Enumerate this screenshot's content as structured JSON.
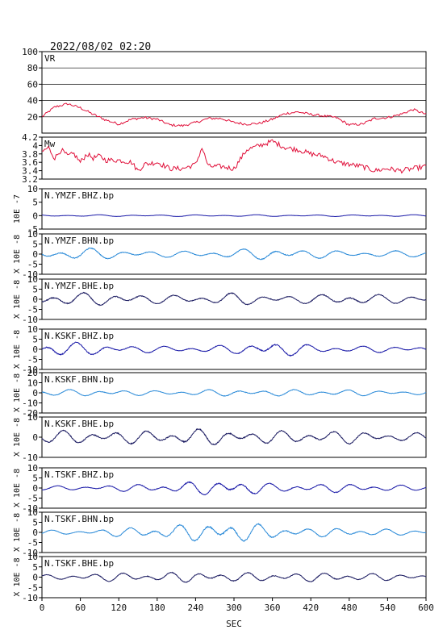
{
  "title": "2022/08/02 02:20",
  "chart_data": {
    "type": "line",
    "xlabel": "SEC",
    "xlim": [
      0,
      600
    ],
    "xticks": [
      0,
      60,
      120,
      180,
      240,
      300,
      360,
      420,
      480,
      540,
      600
    ],
    "grid": false,
    "panels": [
      {
        "label": "VR",
        "color": "#e0103a",
        "ylim": [
          0,
          100
        ],
        "yticks": [
          20,
          40,
          60,
          80,
          100
        ],
        "hgrid": [
          20,
          40,
          60,
          80
        ],
        "x": [
          0,
          20,
          40,
          60,
          80,
          100,
          120,
          140,
          160,
          180,
          200,
          220,
          240,
          260,
          280,
          300,
          320,
          340,
          360,
          380,
          400,
          420,
          440,
          460,
          480,
          500,
          520,
          540,
          560,
          580,
          600
        ],
        "values": [
          20,
          32,
          36,
          31,
          23,
          16,
          11,
          17,
          19,
          17,
          10,
          9,
          13,
          18,
          18,
          13,
          11,
          12,
          17,
          24,
          26,
          23,
          21,
          19,
          10,
          11,
          18,
          19,
          23,
          29,
          23
        ]
      },
      {
        "label": "Mw",
        "color": "#e0103a",
        "ylim": [
          3.2,
          4.2
        ],
        "yticks": [
          3.2,
          3.4,
          3.6,
          3.8,
          4.0,
          4.2
        ],
        "x": [
          0,
          10,
          20,
          30,
          40,
          50,
          60,
          70,
          80,
          90,
          100,
          120,
          140,
          150,
          160,
          180,
          200,
          220,
          240,
          250,
          260,
          280,
          300,
          320,
          340,
          360,
          380,
          400,
          420,
          440,
          460,
          480,
          500,
          520,
          540,
          560,
          580,
          600
        ],
        "values": [
          3.85,
          3.95,
          3.7,
          3.9,
          3.75,
          3.8,
          3.6,
          3.8,
          3.7,
          3.75,
          3.65,
          3.65,
          3.6,
          3.4,
          3.55,
          3.6,
          3.45,
          3.45,
          3.55,
          3.95,
          3.5,
          3.5,
          3.45,
          3.9,
          4.0,
          4.1,
          3.95,
          3.9,
          3.8,
          3.75,
          3.6,
          3.55,
          3.5,
          3.4,
          3.45,
          3.4,
          3.45,
          3.5
        ]
      },
      {
        "label": "N.YMZF.BHZ.bp",
        "unit": "10E -7",
        "color": "#1a1aa8",
        "ylim": [
          -5,
          10
        ],
        "yticks": [
          -5,
          0,
          5,
          10
        ],
        "amplitude": [
          0.3,
          0.3,
          0.3,
          0.3,
          0.3,
          0.3,
          0.3,
          0.3,
          0.3,
          0.3,
          0.3
        ]
      },
      {
        "label": "N.YMZF.BHN.bp",
        "unit": "X 10E -8",
        "color": "#2a8ad8",
        "ylim": [
          -10,
          10
        ],
        "yticks": [
          -10,
          -5,
          0,
          5,
          10
        ],
        "amplitude": [
          2,
          3,
          2,
          1.5,
          1.5,
          2,
          3,
          2,
          1.5,
          1.5,
          1.5
        ]
      },
      {
        "label": "N.YMZF.BHE.bp",
        "unit": "X 10E -8",
        "color": "#1a1a60",
        "ylim": [
          -10,
          10
        ],
        "yticks": [
          -10,
          -5,
          0,
          5,
          10
        ],
        "amplitude": [
          3,
          3,
          3,
          2,
          2,
          3,
          2,
          2,
          3,
          2,
          2
        ]
      },
      {
        "label": "N.KSKF.BHZ.bp",
        "unit": "X 10E -8",
        "color": "#1a1aa8",
        "ylim": [
          -10,
          10
        ],
        "yticks": [
          -10,
          -5,
          0,
          5,
          10
        ],
        "amplitude": [
          4,
          3,
          2,
          1.5,
          1.5,
          2,
          4,
          2,
          1.5,
          1.5,
          1.5
        ]
      },
      {
        "label": "N.KSKF.BHN.bp",
        "unit": "X 10E -8",
        "color": "#2a8ad8",
        "ylim": [
          -20,
          20
        ],
        "yticks": [
          -20,
          -10,
          0,
          10,
          20
        ],
        "amplitude": [
          3,
          3,
          3,
          2,
          3,
          3,
          3,
          3,
          3,
          2,
          2
        ]
      },
      {
        "label": "N.KSKF.BHE.bp",
        "unit": "X 10E -8",
        "color": "#1a1a60",
        "ylim": [
          -10,
          10
        ],
        "yticks": [
          -10,
          0,
          10
        ],
        "amplitude": [
          3,
          3,
          3,
          3,
          4,
          3,
          3,
          3,
          3,
          2,
          2
        ]
      },
      {
        "label": "N.TSKF.BHZ.bp",
        "unit": "X 10E -8",
        "color": "#1a1aa8",
        "ylim": [
          -10,
          10
        ],
        "yticks": [
          -10,
          -5,
          0,
          5,
          10
        ],
        "amplitude": [
          1,
          1,
          1.5,
          2,
          3,
          4,
          2,
          2,
          2,
          1.5,
          1
        ]
      },
      {
        "label": "N.TSKF.BHN.bp",
        "unit": "X 10E -8",
        "color": "#2a8ad8",
        "ylim": [
          -10,
          10
        ],
        "yticks": [
          -10,
          -5,
          0,
          5,
          10
        ],
        "amplitude": [
          1,
          1,
          2,
          3,
          4,
          5,
          3,
          2,
          2,
          1.5,
          1
        ]
      },
      {
        "label": "N.TSKF.BHE.bp",
        "unit": "X 10E -8",
        "color": "#1a1a60",
        "ylim": [
          -10,
          10
        ],
        "yticks": [
          -10,
          -5,
          0,
          5,
          10
        ],
        "amplitude": [
          1,
          1.5,
          2,
          2,
          2.5,
          2,
          2,
          2,
          2,
          1.5,
          1.5
        ]
      }
    ]
  }
}
